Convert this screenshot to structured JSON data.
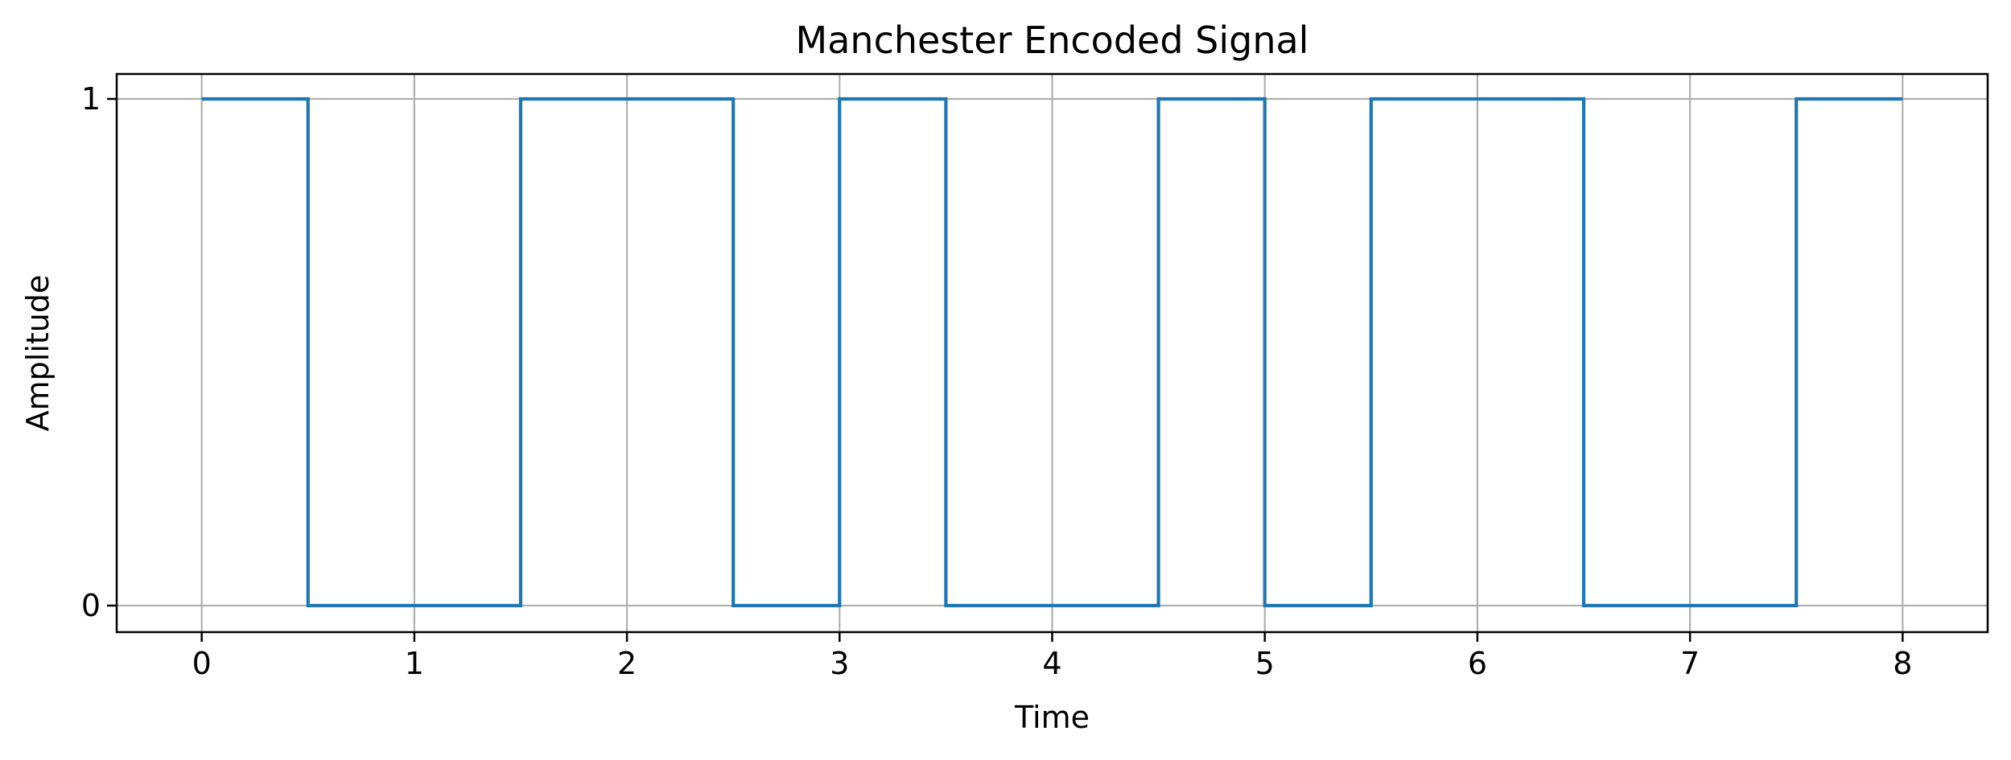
{
  "chart_data": {
    "type": "line",
    "title": "Manchester Encoded Signal",
    "xlabel": "Time",
    "ylabel": "Amplitude",
    "step": "post",
    "x": [
      0,
      0.5,
      1,
      1.5,
      2,
      2.5,
      3,
      3.5,
      4,
      4.5,
      5,
      5.5,
      6,
      6.5,
      7,
      7.5,
      8
    ],
    "series": [
      {
        "values": [
          1,
          0,
          0,
          1,
          1,
          0,
          1,
          0,
          0,
          1,
          0,
          1,
          1,
          0,
          0,
          1,
          1
        ],
        "color": "#1f77b4"
      }
    ],
    "xlim": [
      -0.4,
      8.4
    ],
    "ylim": [
      -0.05,
      1.0
    ],
    "xticks": [
      0,
      1,
      2,
      3,
      4,
      5,
      6,
      7,
      8
    ],
    "xtick_labels": [
      "0",
      "1",
      "2",
      "3",
      "4",
      "5",
      "6",
      "7",
      "8"
    ],
    "yticks": [
      0,
      1
    ],
    "ytick_labels": [
      "0",
      "1"
    ],
    "grid": true
  }
}
